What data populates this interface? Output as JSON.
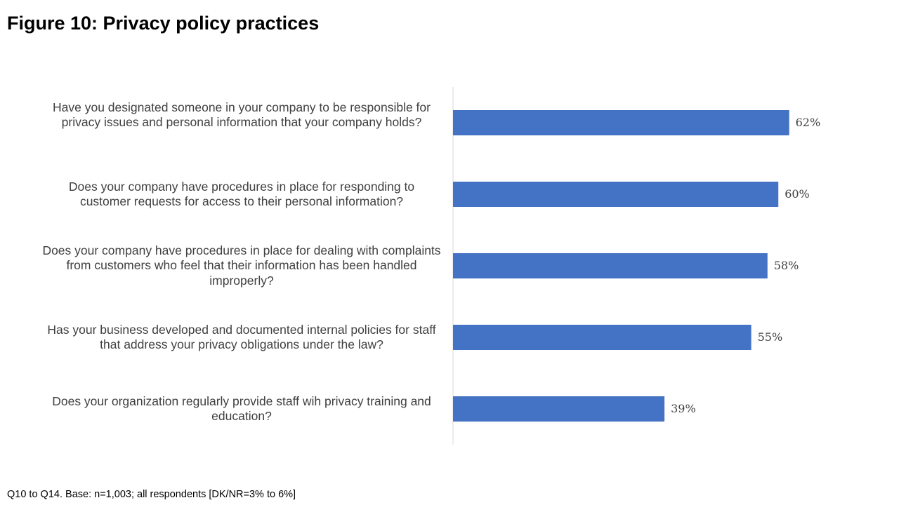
{
  "title": "Figure 10: Privacy policy practices",
  "footnote": "Q10 to Q14. Base: n=1,003; all respondents [DK/NR=3% to 6%]",
  "colors": {
    "bar": "#4472C4",
    "axis": "#D9D9D9",
    "text": "#404040"
  },
  "chart_data": {
    "type": "bar",
    "orientation": "horizontal",
    "title": "Figure 10: Privacy policy practices",
    "xlabel": "",
    "ylabel": "",
    "xlim": [
      0,
      100
    ],
    "grid": false,
    "legend": "none",
    "categories": [
      "Have you designated someone in your company to be responsible for privacy issues and personal information that your company holds?",
      "Does your company have procedures in place for responding to customer requests for access to their personal information?",
      "Does your company have procedures in place for dealing with complaints from customers who feel that their information has been handled improperly?",
      "Has your business developed and documented internal policies for staff that address your privacy obligations under the law?",
      "Does your organization regularly provide staff wih privacy training and education?"
    ],
    "values": [
      62,
      60,
      58,
      55,
      39
    ],
    "value_labels": [
      "62%",
      "60%",
      "58%",
      "55%",
      "39%"
    ]
  }
}
